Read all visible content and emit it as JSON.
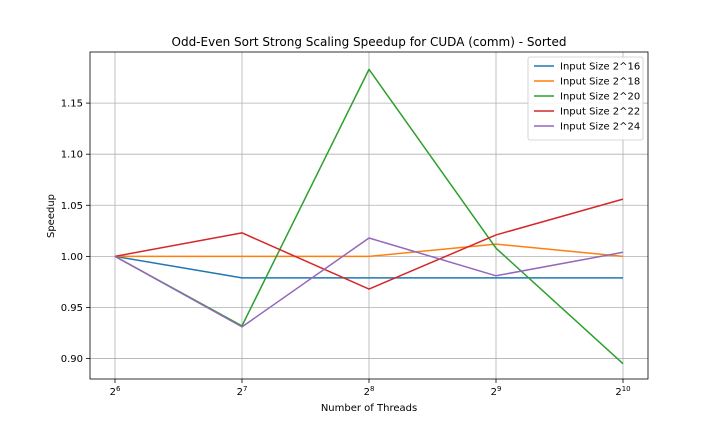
{
  "chart_data": {
    "type": "line",
    "title": "Odd-Even Sort Strong Scaling Speedup for CUDA (comm) - Sorted",
    "xlabel": "Number of Threads",
    "ylabel": "Speedup",
    "x": [
      64,
      128,
      256,
      512,
      1024
    ],
    "x_tick_labels": [
      {
        "base": "2",
        "exp": "6"
      },
      {
        "base": "2",
        "exp": "7"
      },
      {
        "base": "2",
        "exp": "8"
      },
      {
        "base": "2",
        "exp": "9"
      },
      {
        "base": "2",
        "exp": "10"
      }
    ],
    "xscale": "log2",
    "ylim": [
      0.88,
      1.2
    ],
    "yticks": [
      0.9,
      0.95,
      1.0,
      1.05,
      1.1,
      1.15
    ],
    "ytick_labels": [
      "0.90",
      "0.95",
      "1.00",
      "1.05",
      "1.10",
      "1.15"
    ],
    "grid": true,
    "legend_position": "top-right",
    "series": [
      {
        "name": "Input Size 2^16",
        "color": "#1f77b4",
        "values": [
          1.0,
          0.979,
          0.979,
          0.979,
          0.979
        ]
      },
      {
        "name": "Input Size 2^18",
        "color": "#ff7f0e",
        "values": [
          1.0,
          1.0,
          1.0,
          1.012,
          1.0
        ]
      },
      {
        "name": "Input Size 2^20",
        "color": "#2ca02c",
        "values": [
          1.0,
          0.932,
          1.183,
          1.008,
          0.895
        ]
      },
      {
        "name": "Input Size 2^22",
        "color": "#d62728",
        "values": [
          1.0,
          1.023,
          0.968,
          1.021,
          1.056
        ]
      },
      {
        "name": "Input Size 2^24",
        "color": "#9467bd",
        "values": [
          1.0,
          0.931,
          1.018,
          0.981,
          1.004
        ]
      }
    ]
  }
}
